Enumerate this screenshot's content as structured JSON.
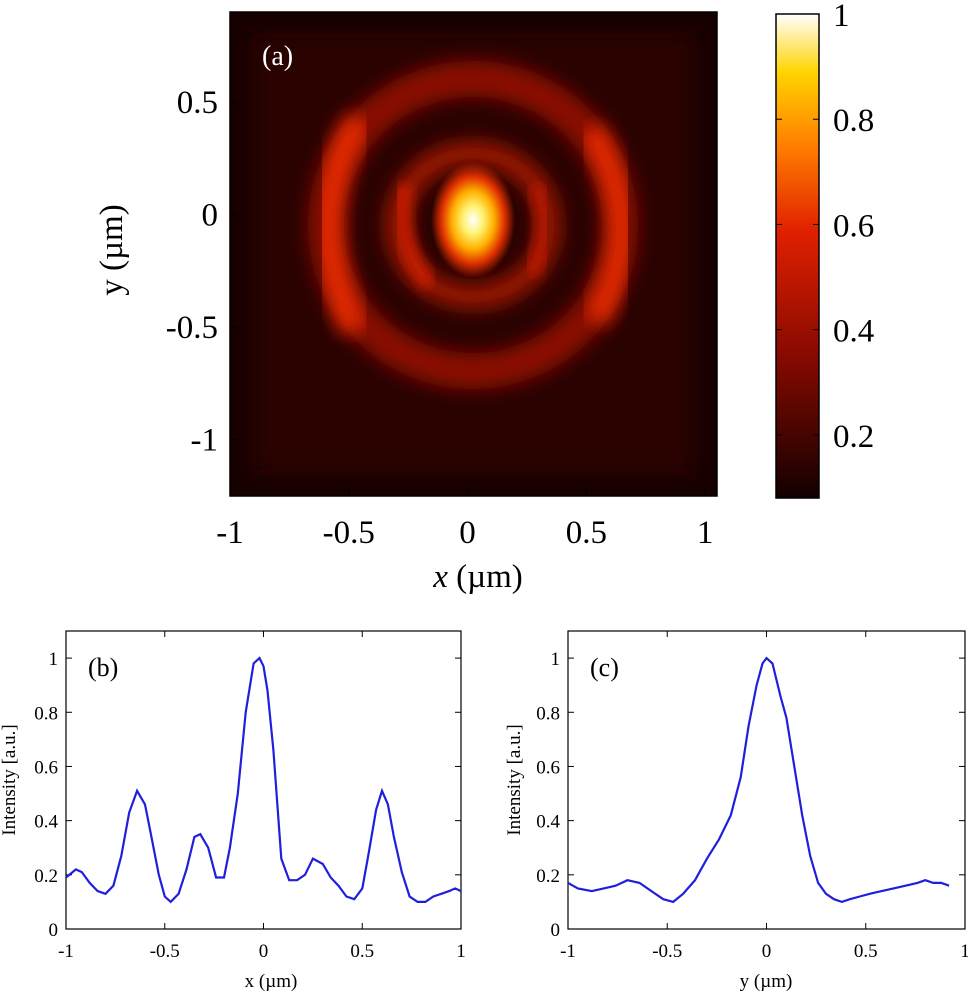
{
  "chart_data": [
    {
      "id": "a",
      "type": "heatmap",
      "panel_label": "(a)",
      "xlabel_var": "x",
      "xlabel_unit": " (µm)",
      "ylabel": "y (µm)",
      "xlim": [
        -1,
        1.05
      ],
      "ylim": [
        -1.25,
        0.9
      ],
      "xticks": [
        -1,
        -0.5,
        0,
        0.5,
        1
      ],
      "xtick_labels": [
        "-1",
        "-0.5",
        "0",
        "0.5",
        "1"
      ],
      "yticks": [
        0.5,
        0,
        -0.5,
        -1
      ],
      "ytick_labels": [
        "0.5",
        "0",
        "-0.5",
        "-1"
      ],
      "colormap": "hot",
      "colorbar": {
        "range": [
          0.08,
          1
        ],
        "ticks": [
          1,
          0.8,
          0.6,
          0.4,
          0.2
        ],
        "tick_labels": [
          "1",
          "0.8",
          "0.6",
          "0.4",
          "0.2"
        ]
      },
      "features": [
        {
          "kind": "peak",
          "x": 0,
          "y": 0,
          "value": 1.0
        },
        {
          "kind": "ring",
          "radius_x": 0.62,
          "radius_y": 0.6,
          "value": 0.5
        },
        {
          "kind": "ring",
          "radius_x": 0.32,
          "radius_y": 0.3,
          "value": 0.33
        }
      ]
    },
    {
      "id": "b",
      "type": "line",
      "panel_label": "(b)",
      "xlabel": "x (µm)",
      "ylabel": "Intensity [a.u.]",
      "xlim": [
        -1,
        1
      ],
      "ylim": [
        0,
        1.1
      ],
      "xticks": [
        -1,
        -0.5,
        0,
        0.5,
        1
      ],
      "xtick_labels": [
        "-1",
        "-0.5",
        "0",
        "0.5",
        "1"
      ],
      "yticks": [
        0,
        0.2,
        0.4,
        0.6,
        0.8,
        1
      ],
      "ytick_labels": [
        "0",
        "0.2",
        "0.4",
        "0.6",
        "0.8",
        "1"
      ],
      "color": "#1f1fdc",
      "x": [
        -1,
        -0.95,
        -0.92,
        -0.88,
        -0.84,
        -0.8,
        -0.76,
        -0.72,
        -0.68,
        -0.64,
        -0.6,
        -0.57,
        -0.53,
        -0.5,
        -0.47,
        -0.43,
        -0.39,
        -0.35,
        -0.32,
        -0.28,
        -0.24,
        -0.2,
        -0.17,
        -0.13,
        -0.09,
        -0.05,
        -0.02,
        0,
        0.02,
        0.05,
        0.09,
        0.13,
        0.17,
        0.21,
        0.25,
        0.3,
        0.34,
        0.38,
        0.42,
        0.46,
        0.5,
        0.53,
        0.57,
        0.6,
        0.63,
        0.66,
        0.7,
        0.74,
        0.78,
        0.82,
        0.86,
        0.9,
        0.94,
        0.97,
        1
      ],
      "y": [
        0.19,
        0.22,
        0.21,
        0.17,
        0.14,
        0.13,
        0.16,
        0.27,
        0.43,
        0.51,
        0.46,
        0.35,
        0.2,
        0.12,
        0.1,
        0.13,
        0.22,
        0.34,
        0.35,
        0.3,
        0.19,
        0.19,
        0.3,
        0.5,
        0.8,
        0.98,
        1.0,
        0.97,
        0.88,
        0.66,
        0.26,
        0.18,
        0.18,
        0.2,
        0.26,
        0.24,
        0.19,
        0.16,
        0.12,
        0.11,
        0.15,
        0.27,
        0.44,
        0.51,
        0.46,
        0.34,
        0.21,
        0.12,
        0.1,
        0.1,
        0.12,
        0.13,
        0.14,
        0.15,
        0.14
      ]
    },
    {
      "id": "c",
      "type": "line",
      "panel_label": "(c)",
      "xlabel": "y (µm)",
      "ylabel": "Intensity [a.u.]",
      "xlim": [
        -1,
        1
      ],
      "ylim": [
        0,
        1.1
      ],
      "xticks": [
        -1,
        -0.5,
        0,
        0.5,
        1
      ],
      "xtick_labels": [
        "-1",
        "-0.5",
        "0",
        "0.5",
        "1"
      ],
      "yticks": [
        0,
        0.2,
        0.4,
        0.6,
        0.8,
        1
      ],
      "ytick_labels": [
        "0",
        "0.2",
        "0.4",
        "0.6",
        "0.8",
        "1"
      ],
      "color": "#1f1fdc",
      "x": [
        -1,
        -0.95,
        -0.88,
        -0.82,
        -0.76,
        -0.7,
        -0.64,
        -0.58,
        -0.52,
        -0.47,
        -0.42,
        -0.36,
        -0.3,
        -0.24,
        -0.18,
        -0.13,
        -0.09,
        -0.05,
        -0.02,
        0,
        0.03,
        0.07,
        0.1,
        0.14,
        0.18,
        0.22,
        0.26,
        0.3,
        0.34,
        0.38,
        0.42,
        0.47,
        0.52,
        0.58,
        0.64,
        0.7,
        0.76,
        0.8,
        0.84,
        0.88,
        0.92
      ],
      "y": [
        0.17,
        0.15,
        0.14,
        0.15,
        0.16,
        0.18,
        0.17,
        0.14,
        0.11,
        0.1,
        0.13,
        0.18,
        0.26,
        0.33,
        0.42,
        0.56,
        0.75,
        0.9,
        0.98,
        1.0,
        0.98,
        0.86,
        0.78,
        0.6,
        0.42,
        0.27,
        0.17,
        0.13,
        0.11,
        0.1,
        0.11,
        0.12,
        0.13,
        0.14,
        0.15,
        0.16,
        0.17,
        0.18,
        0.17,
        0.17,
        0.16
      ]
    }
  ]
}
